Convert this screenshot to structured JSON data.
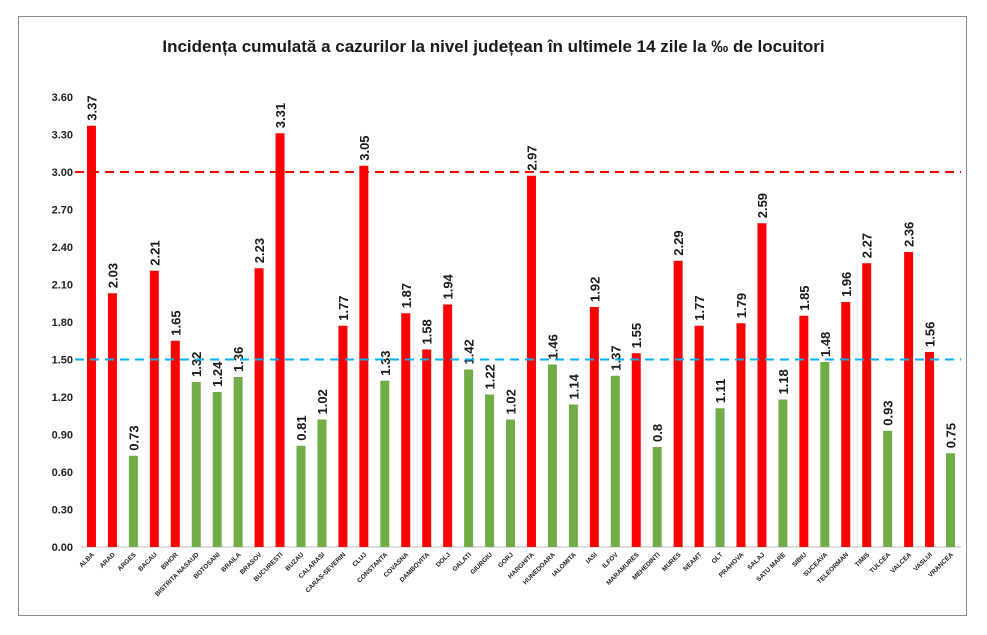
{
  "chart_data": {
    "type": "bar",
    "title": "Incidența cumulată a cazurilor la nivel județean în ultimele 14 zile la ‰ de locuitori",
    "xlabel": "",
    "ylabel": "",
    "ylim": [
      0,
      3.6
    ],
    "yticks": [
      "0.00",
      "0.30",
      "0.60",
      "0.90",
      "1.20",
      "1.50",
      "1.80",
      "2.10",
      "2.40",
      "2.70",
      "3.00",
      "3.30",
      "3.60"
    ],
    "grid": false,
    "legend": "none",
    "colors": {
      "above": "#ff0000",
      "below": "#70ad47",
      "ref_high": "#ff0000",
      "ref_low": "#00b0f0"
    },
    "reference_lines": [
      {
        "value": 3.0,
        "color": "#ff0000",
        "style": "dashed"
      },
      {
        "value": 1.5,
        "color": "#00b0f0",
        "style": "dashed"
      }
    ],
    "categories": [
      "ALBA",
      "ARAD",
      "ARGES",
      "BACAU",
      "BIHOR",
      "BISTRITA NASAUD",
      "BOTOSANI",
      "BRAILA",
      "BRASOV",
      "BUCURESTI",
      "BUZAU",
      "CALARASI",
      "CARAS-SEVERIN",
      "CLUJ",
      "CONSTANTA",
      "COVASNA",
      "DAMBOVITA",
      "DOLJ",
      "GALATI",
      "GIURGIU",
      "GORJ",
      "HARGHITA",
      "HUNEDOARA",
      "IALOMITA",
      "IASI",
      "ILFOV",
      "MARAMURES",
      "MEHEDINTI",
      "MURES",
      "NEAMT",
      "OLT",
      "PRAHOVA",
      "SALAJ",
      "SATU MARE",
      "SIBIU",
      "SUCEAVA",
      "TELEORMAN",
      "TIMIS",
      "TULCEA",
      "VALCEA",
      "VASLUI",
      "VRANCEA"
    ],
    "values": [
      3.37,
      2.03,
      0.73,
      2.21,
      1.65,
      1.32,
      1.24,
      1.36,
      2.23,
      3.31,
      0.81,
      1.02,
      1.77,
      3.05,
      1.33,
      1.87,
      1.58,
      1.94,
      1.42,
      1.22,
      1.02,
      2.97,
      1.46,
      1.14,
      1.92,
      1.37,
      1.55,
      0.8,
      2.29,
      1.77,
      1.11,
      1.79,
      2.59,
      1.18,
      1.85,
      1.48,
      1.96,
      2.27,
      0.93,
      2.36,
      1.56,
      0.75
    ],
    "labels": [
      "3.37",
      "2.03",
      "0.73",
      "2.21",
      "1.65",
      "1.32",
      "1.24",
      "1.36",
      "2.23",
      "3.31",
      "0.81",
      "1.02",
      "1.77",
      "3.05",
      "1.33",
      "1.87",
      "1.58",
      "1.94",
      "1.42",
      "1.22",
      "1.02",
      "2.97",
      "1.46",
      "1.14",
      "1.92",
      "1.37",
      "1.55",
      "0.8",
      "2.29",
      "1.77",
      "1.11",
      "1.79",
      "2.59",
      "1.18",
      "1.85",
      "1.48",
      "1.96",
      "2.27",
      "0.93",
      "2.36",
      "1.56",
      "0.75"
    ]
  }
}
